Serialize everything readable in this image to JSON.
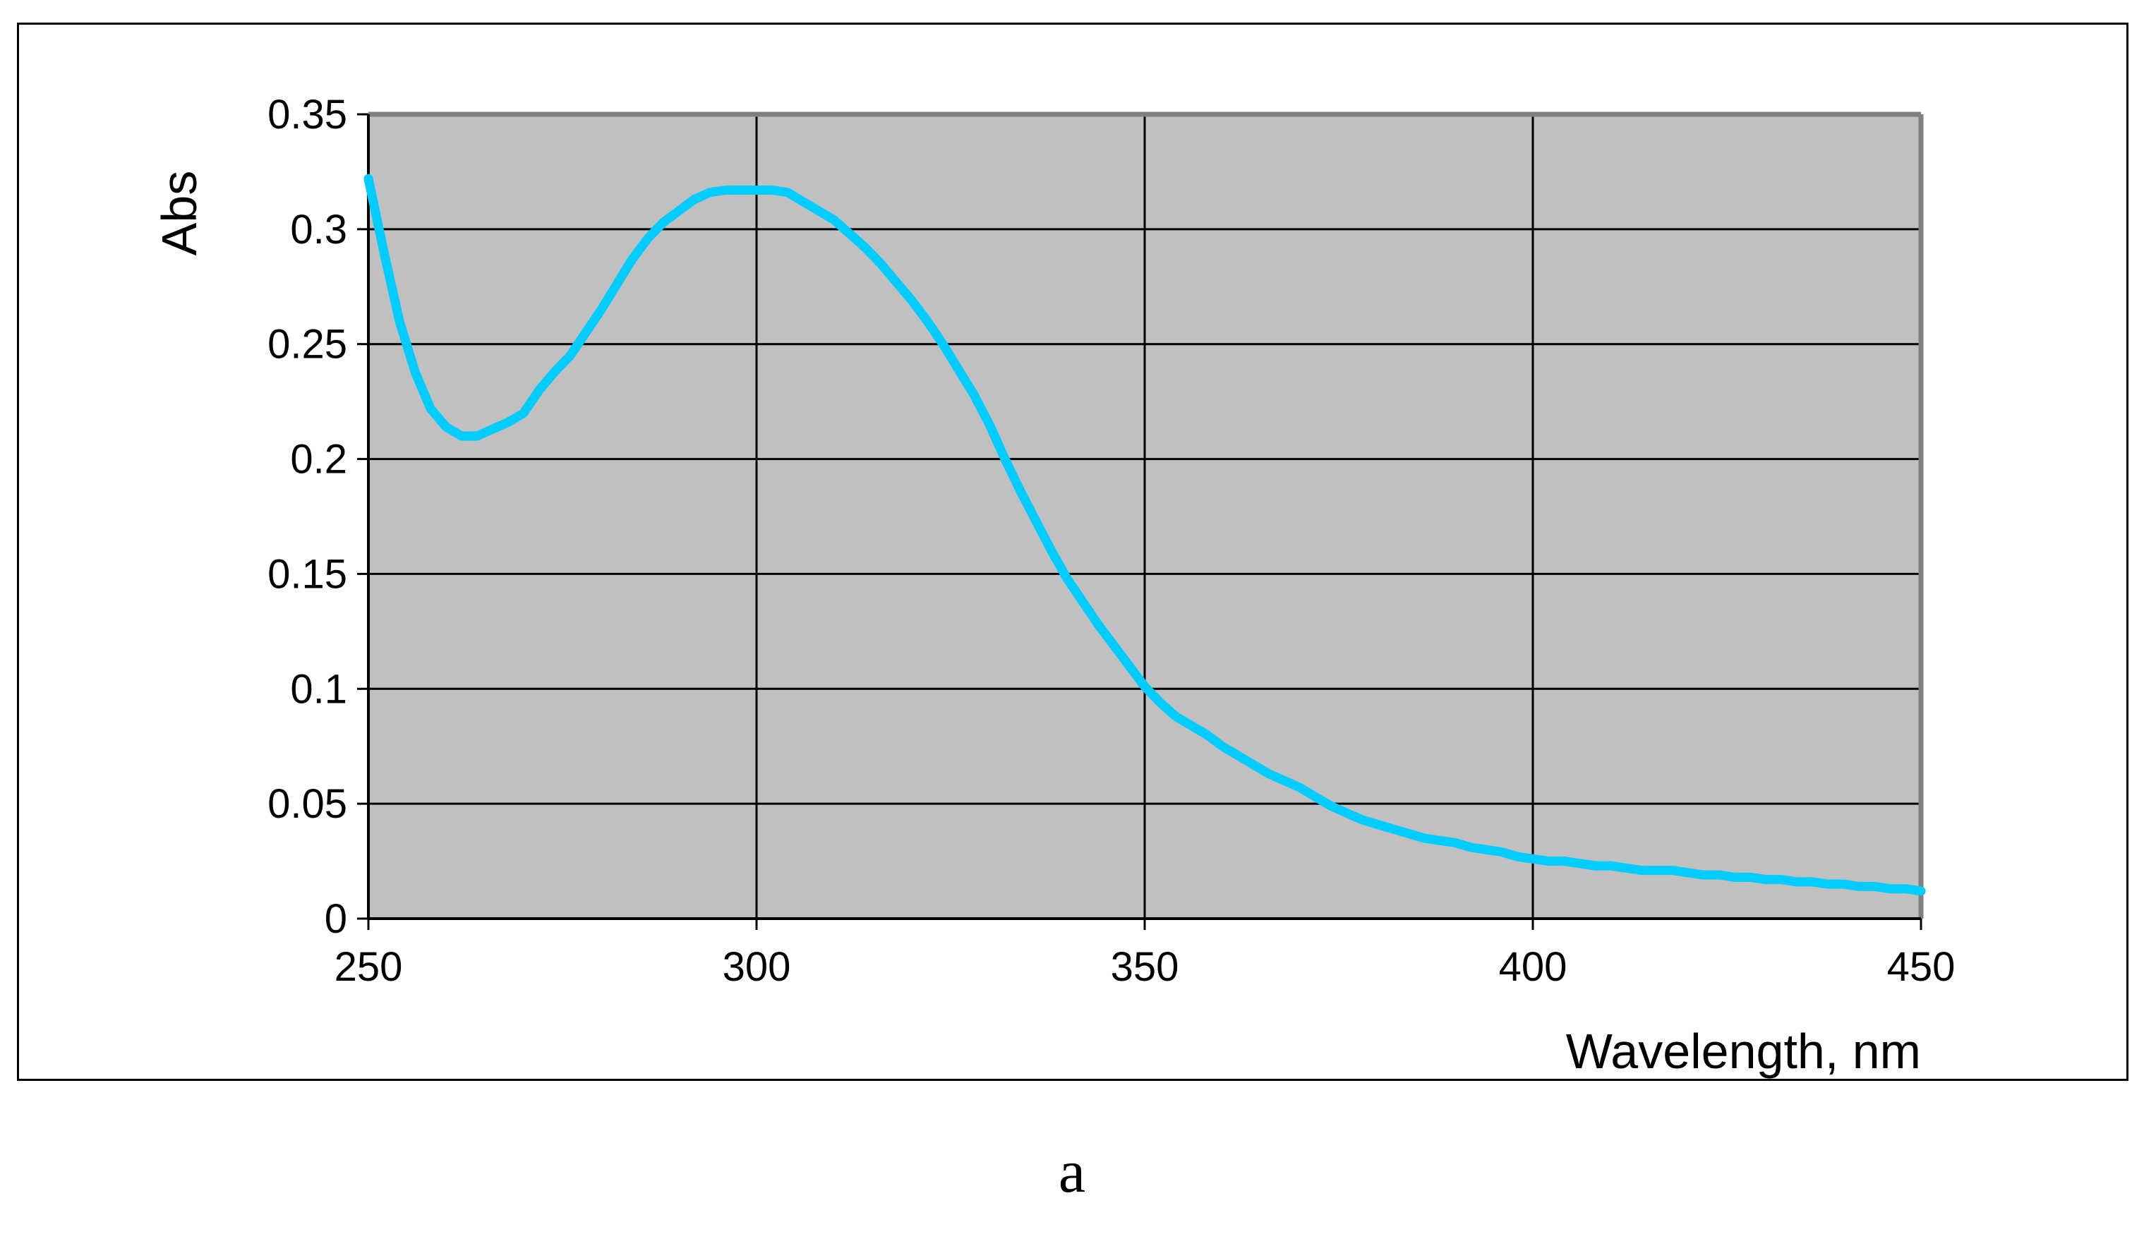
{
  "chart_data": {
    "type": "line",
    "xlabel": "Wavelength, nm",
    "ylabel": "Abs",
    "xlim": [
      250,
      450
    ],
    "ylim": [
      0,
      0.35
    ],
    "xticks": [
      "250",
      "300",
      "350",
      "400",
      "450"
    ],
    "yticks": [
      "0",
      "0.05",
      "0.1",
      "0.15",
      "0.2",
      "0.25",
      "0.3",
      "0.35"
    ],
    "grid": true,
    "legend": "none",
    "plot_background": "#c0c0c0",
    "series": [
      {
        "color": "#00ccff",
        "x": [
          250,
          252,
          254,
          256,
          258,
          260,
          262,
          264,
          266,
          268,
          270,
          272,
          274,
          276,
          278,
          280,
          282,
          284,
          286,
          288,
          290,
          292,
          294,
          296,
          298,
          300,
          302,
          304,
          306,
          308,
          310,
          312,
          314,
          316,
          318,
          320,
          322,
          324,
          326,
          328,
          330,
          332,
          334,
          336,
          338,
          340,
          342,
          344,
          346,
          348,
          350,
          352,
          354,
          356,
          358,
          360,
          362,
          364,
          366,
          368,
          370,
          372,
          374,
          376,
          378,
          380,
          382,
          384,
          386,
          388,
          390,
          392,
          394,
          396,
          398,
          400,
          402,
          404,
          406,
          408,
          410,
          412,
          414,
          416,
          418,
          420,
          422,
          424,
          426,
          428,
          430,
          432,
          434,
          436,
          438,
          440,
          442,
          444,
          446,
          448,
          450
        ],
        "y": [
          0.322,
          0.29,
          0.26,
          0.238,
          0.222,
          0.214,
          0.21,
          0.21,
          0.213,
          0.216,
          0.22,
          0.23,
          0.238,
          0.245,
          0.255,
          0.265,
          0.276,
          0.287,
          0.296,
          0.303,
          0.308,
          0.313,
          0.316,
          0.317,
          0.317,
          0.317,
          0.317,
          0.316,
          0.312,
          0.308,
          0.304,
          0.298,
          0.292,
          0.285,
          0.277,
          0.269,
          0.26,
          0.25,
          0.239,
          0.228,
          0.215,
          0.2,
          0.186,
          0.173,
          0.16,
          0.148,
          0.138,
          0.128,
          0.119,
          0.11,
          0.101,
          0.094,
          0.088,
          0.084,
          0.08,
          0.075,
          0.071,
          0.067,
          0.063,
          0.06,
          0.057,
          0.053,
          0.049,
          0.046,
          0.043,
          0.041,
          0.039,
          0.037,
          0.035,
          0.034,
          0.033,
          0.031,
          0.03,
          0.029,
          0.027,
          0.026,
          0.025,
          0.025,
          0.024,
          0.023,
          0.023,
          0.022,
          0.021,
          0.021,
          0.021,
          0.02,
          0.019,
          0.019,
          0.018,
          0.018,
          0.017,
          0.017,
          0.016,
          0.016,
          0.015,
          0.015,
          0.014,
          0.014,
          0.013,
          0.013,
          0.012
        ]
      }
    ]
  },
  "caption": "a"
}
